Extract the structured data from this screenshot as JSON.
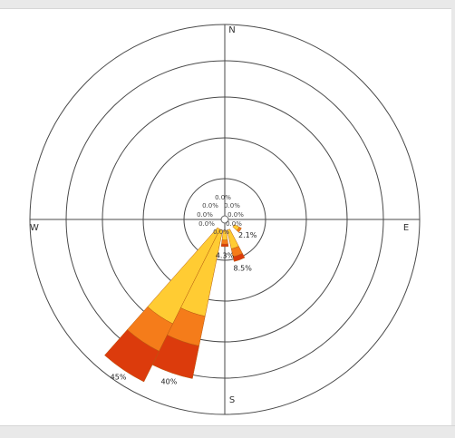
{
  "chart_data": {
    "type": "windrose",
    "directions": [
      "N",
      "E",
      "S",
      "W"
    ],
    "series_colors": [
      "#ffcc33",
      "#f57c1a",
      "#dc3b0c"
    ],
    "bars": [
      {
        "angle_deg": 214,
        "pct_label": "45%",
        "segments": [
          0.62,
          0.18,
          0.2
        ]
      },
      {
        "angle_deg": 199,
        "pct_label": "40%",
        "segments": [
          0.58,
          0.2,
          0.22
        ]
      },
      {
        "angle_deg": 160,
        "pct_label": "8.5%",
        "segments": [
          0.6,
          0.25,
          0.15
        ]
      },
      {
        "angle_deg": 180,
        "pct_label": "4.3%",
        "segments": [
          0.6,
          0.25,
          0.15
        ]
      },
      {
        "angle_deg": 125,
        "pct_label": "2.1%",
        "segments": [
          0.7,
          0.3,
          0.0
        ]
      }
    ],
    "center_labels": [
      "0.0%",
      "0.0%",
      "0.0%",
      "0.0%",
      "0.0%",
      "0.0%",
      "0.0%",
      "0.0%"
    ],
    "grid": true
  }
}
